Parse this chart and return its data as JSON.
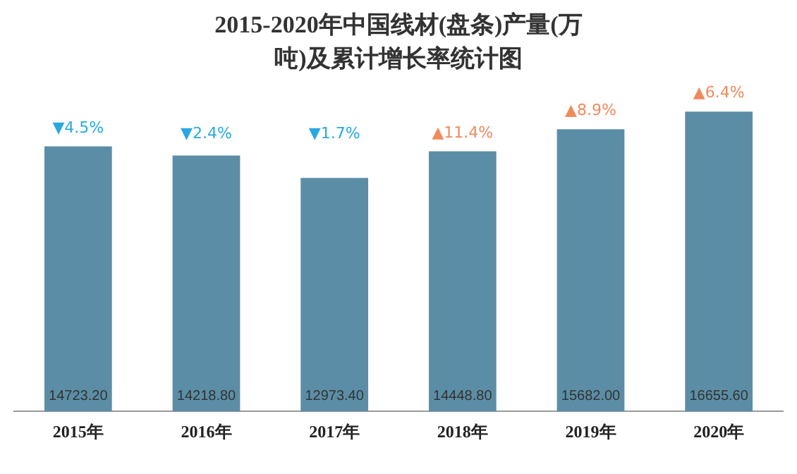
{
  "chart_data": {
    "type": "bar",
    "title": "2015-2020年中国线材(盘条)产量(万吨)及累计增长率统计图",
    "categories": [
      "2015年",
      "2016年",
      "2017年",
      "2018年",
      "2019年",
      "2020年"
    ],
    "values": [
      14723.2,
      14218.8,
      12973.4,
      14448.8,
      15682.0,
      16655.6
    ],
    "value_labels": [
      "14723.20",
      "14218.80",
      "12973.40",
      "14448.80",
      "15682.00",
      "16655.60"
    ],
    "color": "#5b8ea6",
    "tick_labels": "x",
    "grid": false,
    "legend": false,
    "annotations": [
      "▼4.5%",
      "▼2.4%",
      "▼1.7%",
      "▲11.4%",
      "▲8.9%",
      "▲6.4%"
    ]
  }
}
